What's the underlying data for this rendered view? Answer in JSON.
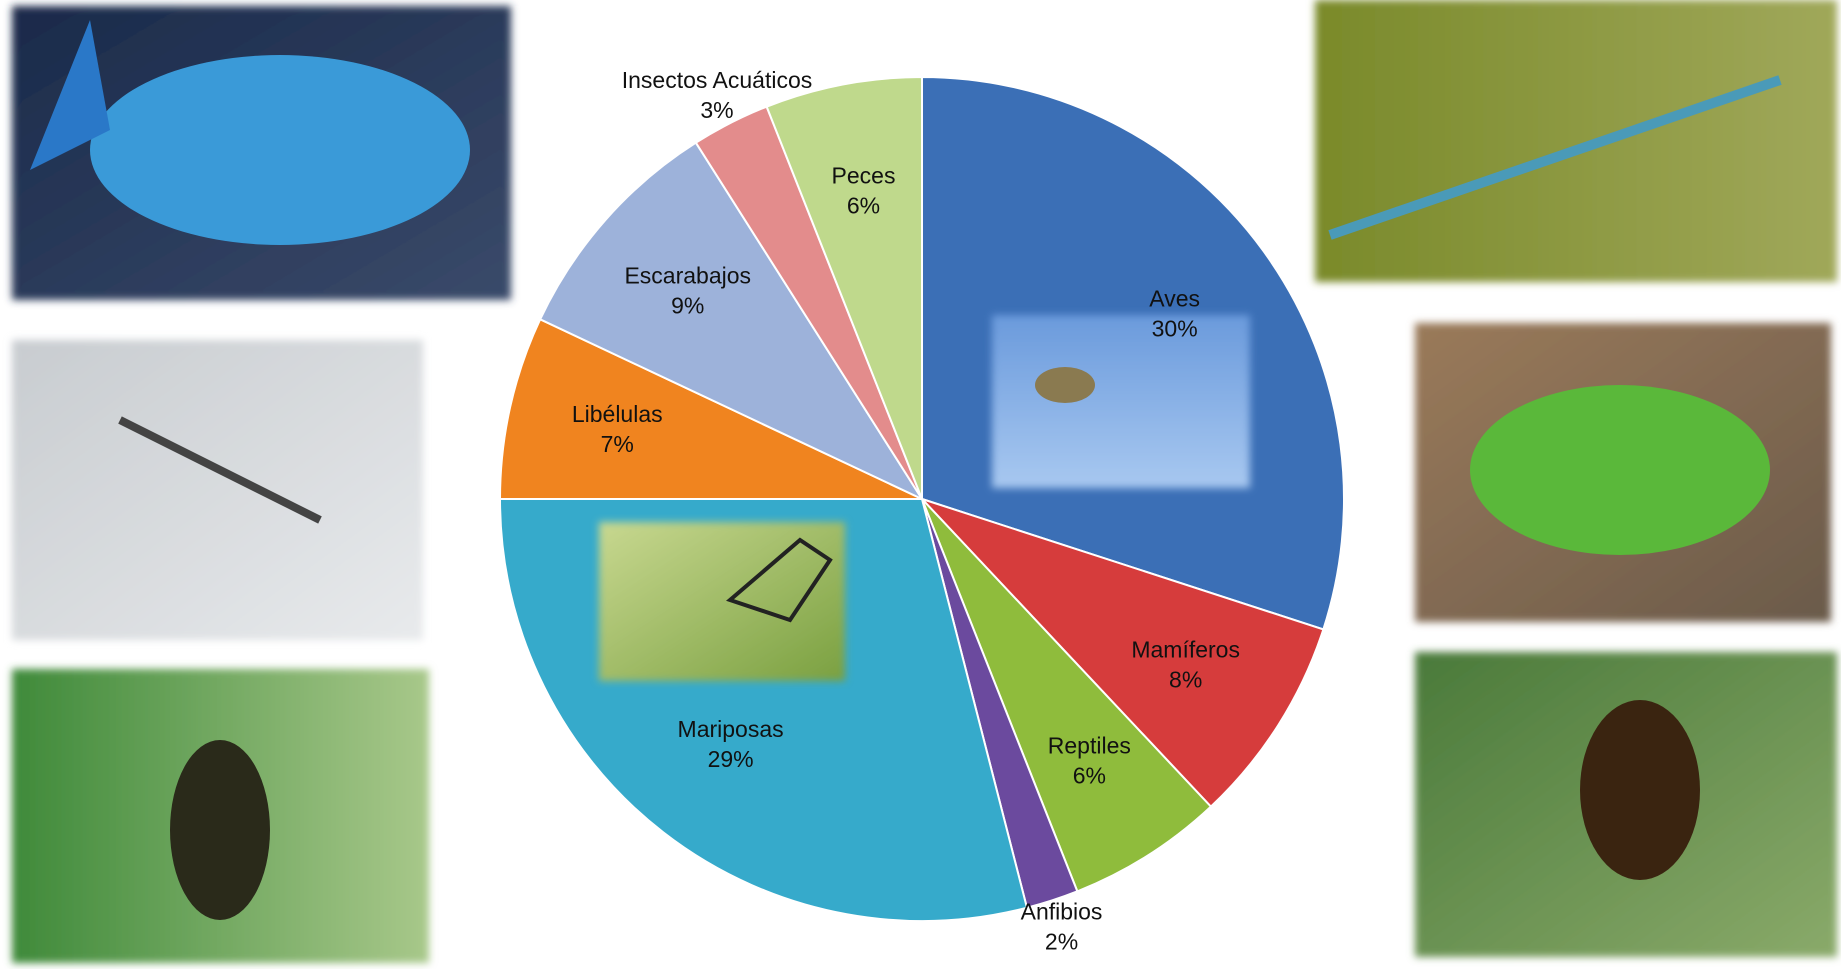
{
  "chart_data": {
    "type": "pie",
    "categories": [
      "Aves",
      "Mamíferos",
      "Reptiles",
      "Anfibios",
      "Mariposas",
      "Libélulas",
      "Escarabajos",
      "Insectos Acuáticos",
      "Peces"
    ],
    "values": [
      30,
      8,
      6,
      2,
      29,
      7,
      9,
      3,
      6
    ],
    "value_labels": [
      "30%",
      "8%",
      "6%",
      "2%",
      "29%",
      "7%",
      "9%",
      "3%",
      "6%"
    ],
    "colors": [
      "#3b6fb6",
      "#d63c3c",
      "#8fbc3c",
      "#6b4a9e",
      "#36aacb",
      "#f0841f",
      "#9db2da",
      "#e38c8c",
      "#bfd98c"
    ]
  }
}
